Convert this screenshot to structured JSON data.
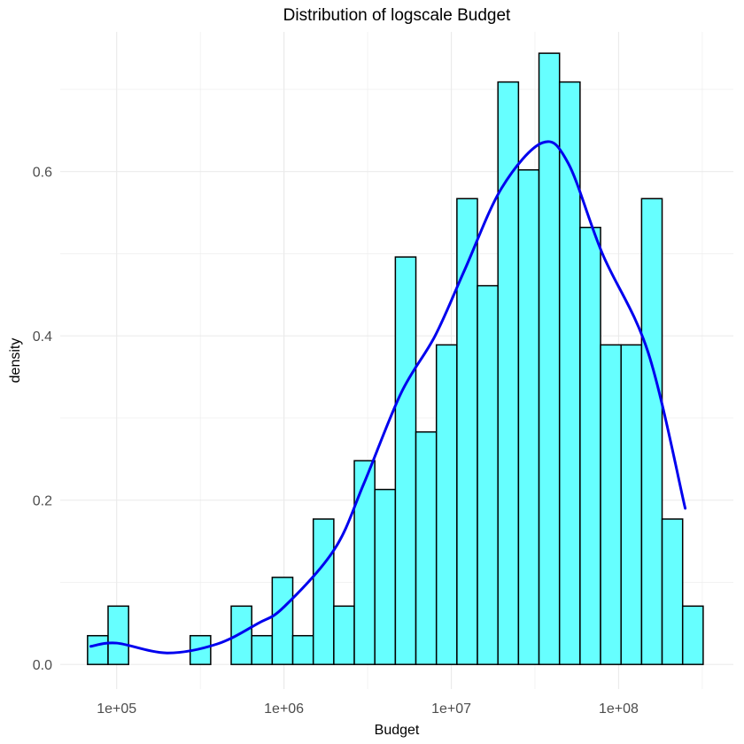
{
  "chart_data": {
    "type": "histogram",
    "title": "Distribution of logscale Budget",
    "xlabel": "Budget",
    "ylabel": "density",
    "x_scale": "log10",
    "x_ticks": [
      100000,
      1000000,
      10000000,
      100000000
    ],
    "x_tick_labels": [
      "1e+05",
      "1e+06",
      "1e+07",
      "1e+08"
    ],
    "xlim": [
      46000,
      485000000
    ],
    "y_ticks": [
      0,
      0.2,
      0.4,
      0.6
    ],
    "y_tick_labels": [
      "0.0",
      "0.2",
      "0.4",
      "0.6"
    ],
    "ylim": [
      -0.03,
      0.77
    ],
    "grid": true,
    "colors": {
      "bar_fill": "#66ffff",
      "bar_stroke": "#000000",
      "density_line": "#0000ee",
      "grid": "#ebebeb"
    },
    "bins": {
      "start": 67000,
      "end": 320000000,
      "count": 30,
      "densities": [
        0.035,
        0.071,
        0,
        0,
        0,
        0.035,
        0,
        0.071,
        0.035,
        0.106,
        0.035,
        0.177,
        0.071,
        0.248,
        0.213,
        0.496,
        0.283,
        0.389,
        0.567,
        0.461,
        0.709,
        0.602,
        0.744,
        0.709,
        0.532,
        0.389,
        0.389,
        0.567,
        0.177,
        0.071
      ]
    },
    "density_curve": {
      "x": [
        70000,
        100000,
        200000,
        400000,
        700000,
        1000000,
        2000000,
        3000000,
        5000000,
        8000000,
        12000000,
        20000000,
        35000000,
        50000000,
        80000000,
        150000000,
        250000000
      ],
      "y": [
        0.022,
        0.026,
        0.014,
        0.025,
        0.05,
        0.07,
        0.14,
        0.22,
        0.33,
        0.4,
        0.48,
        0.58,
        0.635,
        0.61,
        0.5,
        0.38,
        0.19
      ]
    }
  }
}
